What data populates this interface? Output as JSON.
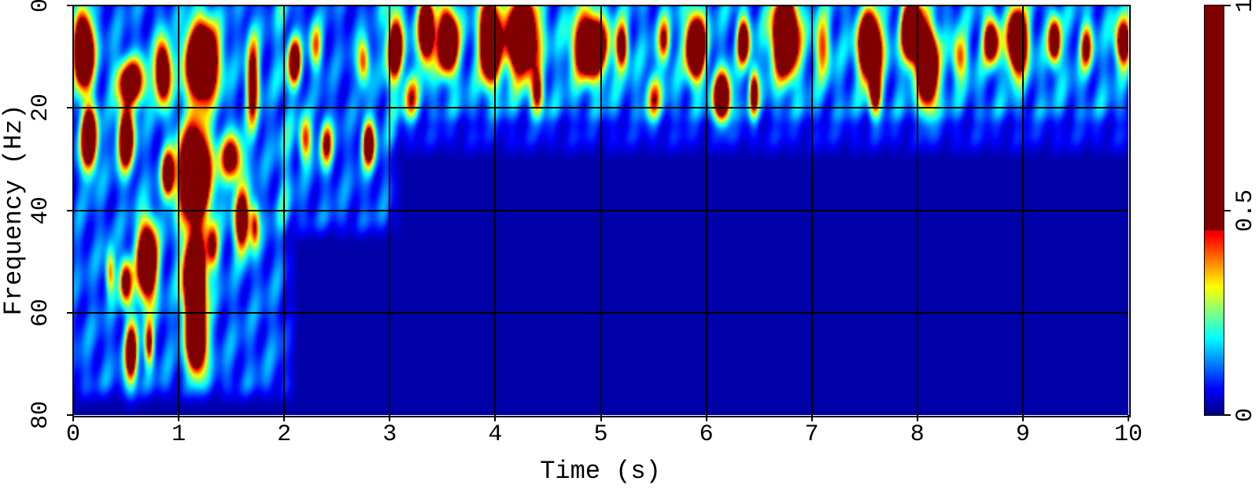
{
  "chart_data": {
    "type": "heatmap",
    "title": "",
    "xlabel": "Time (s)",
    "ylabel": "Frequency (Hz)",
    "xlim": [
      0,
      10
    ],
    "ylim": [
      0,
      80
    ],
    "y_inverted": true,
    "xticks": [
      "0",
      "1",
      "2",
      "3",
      "4",
      "5",
      "6",
      "7",
      "8",
      "9",
      "10"
    ],
    "yticks": [
      "0",
      "20",
      "40",
      "60",
      "80"
    ],
    "grid": true,
    "colorbar": {
      "colormap": "jet",
      "range": [
        0,
        1
      ],
      "saturation_value": 0.45,
      "ticks": [
        "0",
        "0.5",
        "1"
      ],
      "placement": "right"
    },
    "background_regions": [
      {
        "t": [
          0,
          2.0
        ],
        "f": [
          0,
          76
        ],
        "level": 0.14
      },
      {
        "t": [
          2.0,
          3.0
        ],
        "f": [
          0,
          44
        ],
        "level": 0.13
      },
      {
        "t": [
          3.0,
          10
        ],
        "f": [
          0,
          21
        ],
        "level": 0.17
      },
      {
        "t": [
          3.0,
          10
        ],
        "f": [
          21,
          28
        ],
        "level": 0.08
      }
    ],
    "energy_peaks": [
      {
        "t": 0.1,
        "f": 9,
        "a": 1.0,
        "st": 0.06,
        "sf": 4.5
      },
      {
        "t": 0.15,
        "f": 26,
        "a": 0.8,
        "st": 0.05,
        "sf": 4
      },
      {
        "t": 0.55,
        "f": 15,
        "a": 0.6,
        "st": 0.09,
        "sf": 3
      },
      {
        "t": 0.85,
        "f": 13,
        "a": 0.7,
        "st": 0.05,
        "sf": 4
      },
      {
        "t": 0.5,
        "f": 26,
        "a": 0.7,
        "st": 0.05,
        "sf": 4
      },
      {
        "t": 0.9,
        "f": 33,
        "a": 0.6,
        "st": 0.04,
        "sf": 3
      },
      {
        "t": 1.22,
        "f": 11,
        "a": 1.0,
        "st": 0.1,
        "sf": 5
      },
      {
        "t": 1.15,
        "f": 33,
        "a": 1.0,
        "st": 0.1,
        "sf": 6
      },
      {
        "t": 1.7,
        "f": 15,
        "a": 0.5,
        "st": 0.04,
        "sf": 6
      },
      {
        "t": 1.5,
        "f": 30,
        "a": 0.5,
        "st": 0.07,
        "sf": 3
      },
      {
        "t": 1.6,
        "f": 42,
        "a": 0.6,
        "st": 0.05,
        "sf": 4
      },
      {
        "t": 1.72,
        "f": 43,
        "a": 0.35,
        "st": 0.03,
        "sf": 3
      },
      {
        "t": 0.7,
        "f": 50,
        "a": 0.9,
        "st": 0.06,
        "sf": 5
      },
      {
        "t": 0.5,
        "f": 54,
        "a": 0.5,
        "st": 0.04,
        "sf": 3
      },
      {
        "t": 1.15,
        "f": 54,
        "a": 1.0,
        "st": 0.07,
        "sf": 6
      },
      {
        "t": 1.32,
        "f": 47,
        "a": 0.4,
        "st": 0.04,
        "sf": 3
      },
      {
        "t": 0.55,
        "f": 68,
        "a": 0.6,
        "st": 0.04,
        "sf": 4
      },
      {
        "t": 0.72,
        "f": 66,
        "a": 0.4,
        "st": 0.03,
        "sf": 3
      },
      {
        "t": 1.17,
        "f": 66,
        "a": 0.8,
        "st": 0.06,
        "sf": 4
      },
      {
        "t": 0.35,
        "f": 52,
        "a": 0.3,
        "st": 0.03,
        "sf": 3
      },
      {
        "t": 2.1,
        "f": 11,
        "a": 0.6,
        "st": 0.04,
        "sf": 3
      },
      {
        "t": 2.2,
        "f": 26,
        "a": 0.35,
        "st": 0.04,
        "sf": 3
      },
      {
        "t": 2.4,
        "f": 27,
        "a": 0.4,
        "st": 0.04,
        "sf": 3
      },
      {
        "t": 2.8,
        "f": 27,
        "a": 0.6,
        "st": 0.04,
        "sf": 3
      },
      {
        "t": 2.75,
        "f": 11,
        "a": 0.35,
        "st": 0.04,
        "sf": 3
      },
      {
        "t": 2.3,
        "f": 8,
        "a": 0.3,
        "st": 0.04,
        "sf": 3
      },
      {
        "t": 3.05,
        "f": 8,
        "a": 0.6,
        "st": 0.05,
        "sf": 4
      },
      {
        "t": 3.35,
        "f": 5,
        "a": 0.8,
        "st": 0.05,
        "sf": 4
      },
      {
        "t": 3.55,
        "f": 7,
        "a": 0.9,
        "st": 0.06,
        "sf": 4
      },
      {
        "t": 3.95,
        "f": 7,
        "a": 1.0,
        "st": 0.06,
        "sf": 5
      },
      {
        "t": 4.25,
        "f": 6,
        "a": 0.9,
        "st": 0.1,
        "sf": 5
      },
      {
        "t": 4.9,
        "f": 8,
        "a": 0.9,
        "st": 0.1,
        "sf": 4
      },
      {
        "t": 5.2,
        "f": 8,
        "a": 0.5,
        "st": 0.04,
        "sf": 3
      },
      {
        "t": 5.9,
        "f": 8,
        "a": 0.9,
        "st": 0.06,
        "sf": 4
      },
      {
        "t": 6.35,
        "f": 7,
        "a": 0.6,
        "st": 0.04,
        "sf": 3
      },
      {
        "t": 6.75,
        "f": 6,
        "a": 1.0,
        "st": 0.08,
        "sf": 5
      },
      {
        "t": 6.15,
        "f": 18,
        "a": 0.8,
        "st": 0.05,
        "sf": 3
      },
      {
        "t": 6.45,
        "f": 17,
        "a": 0.5,
        "st": 0.03,
        "sf": 3
      },
      {
        "t": 7.1,
        "f": 8,
        "a": 0.3,
        "st": 0.05,
        "sf": 4
      },
      {
        "t": 7.55,
        "f": 8,
        "a": 1.0,
        "st": 0.07,
        "sf": 4
      },
      {
        "t": 7.6,
        "f": 17,
        "a": 0.5,
        "st": 0.04,
        "sf": 3
      },
      {
        "t": 7.95,
        "f": 5,
        "a": 1.0,
        "st": 0.06,
        "sf": 4
      },
      {
        "t": 8.1,
        "f": 12,
        "a": 1.0,
        "st": 0.06,
        "sf": 5
      },
      {
        "t": 8.7,
        "f": 7,
        "a": 0.6,
        "st": 0.05,
        "sf": 3
      },
      {
        "t": 8.95,
        "f": 7,
        "a": 0.9,
        "st": 0.06,
        "sf": 4
      },
      {
        "t": 9.3,
        "f": 7,
        "a": 0.6,
        "st": 0.04,
        "sf": 3
      },
      {
        "t": 9.95,
        "f": 7,
        "a": 0.6,
        "st": 0.05,
        "sf": 3
      },
      {
        "t": 4.4,
        "f": 17,
        "a": 0.4,
        "st": 0.04,
        "sf": 3
      },
      {
        "t": 5.6,
        "f": 7,
        "a": 0.35,
        "st": 0.04,
        "sf": 3
      },
      {
        "t": 8.4,
        "f": 10,
        "a": 0.3,
        "st": 0.05,
        "sf": 3
      },
      {
        "t": 9.6,
        "f": 8,
        "a": 0.4,
        "st": 0.04,
        "sf": 3
      },
      {
        "t": 5.5,
        "f": 18,
        "a": 0.3,
        "st": 0.05,
        "sf": 3
      },
      {
        "t": 3.2,
        "f": 18,
        "a": 0.3,
        "st": 0.05,
        "sf": 3
      }
    ]
  }
}
